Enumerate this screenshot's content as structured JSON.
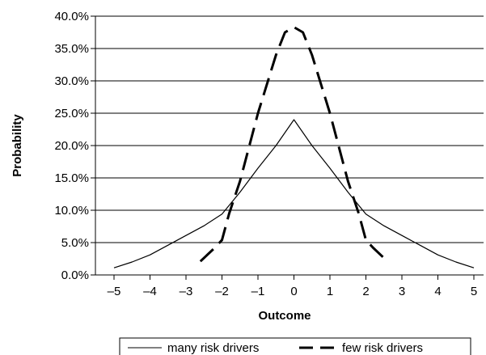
{
  "chart_data": {
    "type": "line",
    "xlabel": "Outcome",
    "ylabel": "Probability",
    "xlim": [
      -5,
      5
    ],
    "ylim": [
      0,
      40
    ],
    "y_unit": "%",
    "grid": "horizontal",
    "legend_position": "bottom",
    "x_ticks": [
      "–5",
      "–4",
      "–3",
      "–2",
      "–1",
      "0",
      "1",
      "2",
      "3",
      "4",
      "5"
    ],
    "y_ticks": [
      "0.0%",
      "5.0%",
      "10.0%",
      "15.0%",
      "20.0%",
      "25.0%",
      "30.0%",
      "35.0%",
      "40.0%"
    ],
    "series": [
      {
        "name": "many risk drivers",
        "style": "solid",
        "color": "#000000",
        "x": [
          -5,
          -4.5,
          -4,
          -3.5,
          -3,
          -2.5,
          -2,
          -1.5,
          -1,
          -0.5,
          0,
          0.5,
          1,
          1.5,
          2,
          2.5,
          3,
          3.5,
          4,
          4.5,
          5
        ],
        "y": [
          1.1,
          2.0,
          3.1,
          4.6,
          6.1,
          7.6,
          9.4,
          12.8,
          16.5,
          20.0,
          24.0,
          20.0,
          16.5,
          12.8,
          9.4,
          7.6,
          6.1,
          4.6,
          3.1,
          2.0,
          1.1
        ]
      },
      {
        "name": "few risk drivers",
        "style": "dashed",
        "color": "#000000",
        "x": [
          -2.6,
          -2.2,
          -2,
          -1.8,
          -1.5,
          -1,
          -0.5,
          -0.25,
          0,
          0.25,
          0.5,
          1,
          1.5,
          1.8,
          2,
          2.2,
          2.6
        ],
        "y": [
          2.1,
          4.2,
          5.4,
          9.5,
          14.5,
          25.0,
          34.0,
          37.5,
          38.3,
          37.5,
          34.0,
          25.0,
          14.5,
          9.5,
          5.4,
          4.2,
          2.1
        ]
      }
    ]
  }
}
